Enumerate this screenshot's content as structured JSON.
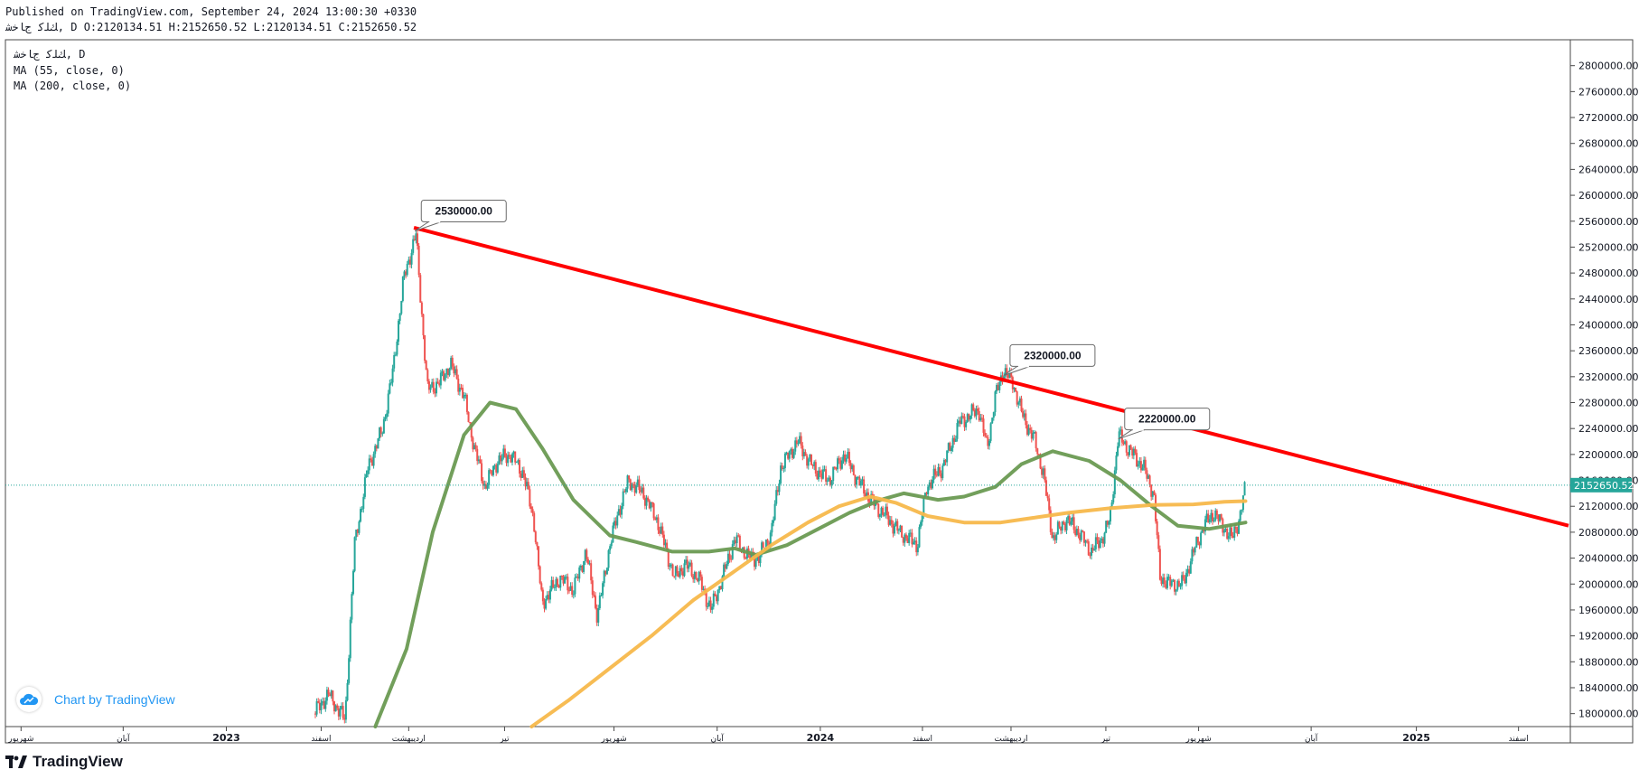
{
  "header": {
    "published": "Published on TradingView.com, September 24, 2024 13:00:30 +0330",
    "symbol_line": "ﻚﻠﻛ ﺝﺎﺧﺷ, D O:2120134.51 H:2152650.52 L:2120134.51 C:2152650.52"
  },
  "legend": {
    "symbol": "ﻚﻠﻛ ﺝﺎﺧﺷ, D",
    "ma55": "MA (55, close, 0)",
    "ma200": "MA (200, close, 0)"
  },
  "watermark": {
    "label": "Chart by TradingView"
  },
  "brand": {
    "label": "TradingView"
  },
  "colors": {
    "up": "#26a69a",
    "down": "#ef5350",
    "ma55": "#6a9a52",
    "ma200": "#f7b84b",
    "trendline": "#ff0000",
    "last_price_bg": "#26a69a"
  },
  "chart_data": {
    "type": "candlestick",
    "ylim": [
      1780000,
      2840000
    ],
    "y_ticks": [
      1800000,
      1840000,
      1880000,
      1920000,
      1960000,
      2000000,
      2040000,
      2080000,
      2120000,
      2160000,
      2200000,
      2240000,
      2280000,
      2320000,
      2360000,
      2400000,
      2440000,
      2480000,
      2520000,
      2560000,
      2600000,
      2640000,
      2680000,
      2720000,
      2760000,
      2800000
    ],
    "y_tick_labels": [
      "1800000.00",
      "1840000.00",
      "1880000.00",
      "1920000.00",
      "1960000.00",
      "2000000.00",
      "2040000.00",
      "2080000.00",
      "2120000.00",
      "2160000.00",
      "2200000.00",
      "2240000.00",
      "2280000.00",
      "2320000.00",
      "2360000.00",
      "2400000.00",
      "2440000.00",
      "2480000.00",
      "2520000.00",
      "2560000.00",
      "2600000.00",
      "2640000.00",
      "2680000.00",
      "2720000.00",
      "2760000.00",
      "2800000.00"
    ],
    "x_range_days": [
      0,
      1500
    ],
    "x_ticks": [
      {
        "day": 15,
        "label": "شهریور",
        "bold": false
      },
      {
        "day": 113,
        "label": "آبان",
        "bold": false
      },
      {
        "day": 212,
        "label": "2023",
        "bold": true
      },
      {
        "day": 303,
        "label": "اسفند",
        "bold": false
      },
      {
        "day": 387,
        "label": "اردیبهشت",
        "bold": false
      },
      {
        "day": 479,
        "label": "تیر",
        "bold": false
      },
      {
        "day": 584,
        "label": "شهریور",
        "bold": false
      },
      {
        "day": 683,
        "label": "آبان",
        "bold": false
      },
      {
        "day": 782,
        "label": "2024",
        "bold": true
      },
      {
        "day": 880,
        "label": "اسفند",
        "bold": false
      },
      {
        "day": 965,
        "label": "اردیبهشت",
        "bold": false
      },
      {
        "day": 1056,
        "label": "تیر",
        "bold": false
      },
      {
        "day": 1145,
        "label": "شهریور",
        "bold": false
      },
      {
        "day": 1253,
        "label": "آبان",
        "bold": false
      },
      {
        "day": 1354,
        "label": "2025",
        "bold": true
      },
      {
        "day": 1452,
        "label": "اسفند",
        "bold": false
      }
    ],
    "price_path": [
      [
        296,
        1800000
      ],
      [
        310,
        1830000
      ],
      [
        326,
        1790000
      ],
      [
        335,
        2060000
      ],
      [
        348,
        2180000
      ],
      [
        362,
        2240000
      ],
      [
        372,
        2330000
      ],
      [
        382,
        2470000
      ],
      [
        394,
        2540000
      ],
      [
        398,
        2450000
      ],
      [
        405,
        2300000
      ],
      [
        416,
        2310000
      ],
      [
        427,
        2340000
      ],
      [
        440,
        2290000
      ],
      [
        450,
        2210000
      ],
      [
        460,
        2150000
      ],
      [
        472,
        2190000
      ],
      [
        485,
        2200000
      ],
      [
        497,
        2170000
      ],
      [
        507,
        2100000
      ],
      [
        515,
        1970000
      ],
      [
        532,
        2010000
      ],
      [
        545,
        1990000
      ],
      [
        557,
        2050000
      ],
      [
        568,
        1950000
      ],
      [
        580,
        2060000
      ],
      [
        588,
        2110000
      ],
      [
        598,
        2160000
      ],
      [
        612,
        2140000
      ],
      [
        625,
        2100000
      ],
      [
        642,
        2010000
      ],
      [
        652,
        2030000
      ],
      [
        665,
        2010000
      ],
      [
        677,
        1960000
      ],
      [
        688,
        2010000
      ],
      [
        700,
        2070000
      ],
      [
        714,
        2040000
      ],
      [
        723,
        2040000
      ],
      [
        735,
        2080000
      ],
      [
        744,
        2180000
      ],
      [
        760,
        2220000
      ],
      [
        775,
        2180000
      ],
      [
        790,
        2160000
      ],
      [
        805,
        2200000
      ],
      [
        818,
        2160000
      ],
      [
        830,
        2130000
      ],
      [
        842,
        2110000
      ],
      [
        858,
        2080000
      ],
      [
        875,
        2060000
      ],
      [
        884,
        2150000
      ],
      [
        899,
        2180000
      ],
      [
        916,
        2250000
      ],
      [
        934,
        2270000
      ],
      [
        942,
        2210000
      ],
      [
        950,
        2290000
      ],
      [
        958,
        2330000
      ],
      [
        967,
        2310000
      ],
      [
        976,
        2260000
      ],
      [
        988,
        2220000
      ],
      [
        996,
        2170000
      ],
      [
        1005,
        2070000
      ],
      [
        1018,
        2100000
      ],
      [
        1030,
        2080000
      ],
      [
        1042,
        2050000
      ],
      [
        1052,
        2070000
      ],
      [
        1060,
        2100000
      ],
      [
        1068,
        2230000
      ],
      [
        1077,
        2210000
      ],
      [
        1092,
        2180000
      ],
      [
        1102,
        2140000
      ],
      [
        1108,
        2010000
      ],
      [
        1118,
        2000000
      ],
      [
        1130,
        2000000
      ],
      [
        1138,
        2040000
      ],
      [
        1150,
        2090000
      ],
      [
        1160,
        2110000
      ],
      [
        1168,
        2090000
      ],
      [
        1177,
        2070000
      ],
      [
        1184,
        2100000
      ],
      [
        1190,
        2150000
      ]
    ],
    "series": [
      {
        "name": "MA (55, close, 0)",
        "color": "#6a9a52",
        "points": [
          [
            355,
            1780000
          ],
          [
            385,
            1900000
          ],
          [
            410,
            2080000
          ],
          [
            440,
            2230000
          ],
          [
            465,
            2280000
          ],
          [
            490,
            2270000
          ],
          [
            515,
            2210000
          ],
          [
            545,
            2130000
          ],
          [
            580,
            2075000
          ],
          [
            605,
            2065000
          ],
          [
            640,
            2050000
          ],
          [
            675,
            2050000
          ],
          [
            700,
            2055000
          ],
          [
            720,
            2045000
          ],
          [
            750,
            2060000
          ],
          [
            780,
            2085000
          ],
          [
            810,
            2110000
          ],
          [
            840,
            2130000
          ],
          [
            862,
            2140000
          ],
          [
            895,
            2130000
          ],
          [
            920,
            2135000
          ],
          [
            950,
            2150000
          ],
          [
            975,
            2185000
          ],
          [
            1005,
            2205000
          ],
          [
            1040,
            2190000
          ],
          [
            1070,
            2160000
          ],
          [
            1100,
            2120000
          ],
          [
            1125,
            2090000
          ],
          [
            1155,
            2085000
          ],
          [
            1190,
            2095000
          ]
        ]
      },
      {
        "name": "MA (200, close, 0)",
        "color": "#f7b84b",
        "points": [
          [
            505,
            1780000
          ],
          [
            540,
            1820000
          ],
          [
            580,
            1870000
          ],
          [
            620,
            1920000
          ],
          [
            660,
            1975000
          ],
          [
            700,
            2020000
          ],
          [
            735,
            2060000
          ],
          [
            770,
            2095000
          ],
          [
            800,
            2120000
          ],
          [
            830,
            2135000
          ],
          [
            855,
            2125000
          ],
          [
            885,
            2105000
          ],
          [
            920,
            2095000
          ],
          [
            955,
            2095000
          ],
          [
            990,
            2103000
          ],
          [
            1020,
            2110000
          ],
          [
            1060,
            2117000
          ],
          [
            1100,
            2122000
          ],
          [
            1140,
            2123000
          ],
          [
            1170,
            2127000
          ],
          [
            1190,
            2128000
          ]
        ]
      }
    ],
    "trendline": {
      "from": [
        392,
        2550000
      ],
      "to": [
        1500,
        2090000
      ]
    },
    "annotations": [
      {
        "text": "2530000.00",
        "day": 393,
        "price": 2545000
      },
      {
        "text": "2320000.00",
        "day": 958,
        "price": 2322000
      },
      {
        "text": "2220000.00",
        "day": 1068,
        "price": 2224000
      }
    ],
    "last_price": {
      "value": 2152650.52,
      "label": "2152650.52"
    }
  }
}
